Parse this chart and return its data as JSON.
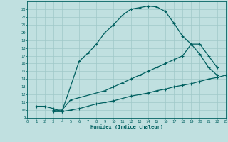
{
  "background_color": "#c0e0e0",
  "grid_color": "#a0c8c8",
  "line_color": "#006060",
  "xlabel": "Humidex (Indice chaleur)",
  "ylim": [
    9,
    24
  ],
  "xlim": [
    0,
    23
  ],
  "yticks": [
    9,
    10,
    11,
    12,
    13,
    14,
    15,
    16,
    17,
    18,
    19,
    20,
    21,
    22,
    23
  ],
  "xticks": [
    0,
    1,
    2,
    3,
    4,
    5,
    6,
    7,
    8,
    9,
    10,
    11,
    12,
    13,
    14,
    15,
    16,
    17,
    18,
    19,
    20,
    21,
    22,
    23
  ],
  "curve1_x": [
    1,
    2,
    3,
    4,
    5,
    6,
    7,
    8,
    9,
    10,
    11,
    12,
    13,
    14,
    15,
    16,
    17,
    18,
    19,
    20,
    21,
    22
  ],
  "curve1_y": [
    10.5,
    10.5,
    10.2,
    9.8,
    13.0,
    16.3,
    17.3,
    18.5,
    20.0,
    21.0,
    22.2,
    23.0,
    23.2,
    23.4,
    23.3,
    22.7,
    21.2,
    19.5,
    18.5,
    17.2,
    15.5,
    14.5
  ],
  "curve2_x": [
    3,
    4,
    5,
    9,
    10,
    11,
    12,
    13,
    14,
    15,
    16,
    17,
    18,
    19,
    20,
    21,
    22
  ],
  "curve2_y": [
    10.0,
    10.0,
    11.3,
    12.5,
    13.0,
    13.5,
    14.0,
    14.5,
    15.0,
    15.5,
    16.0,
    16.5,
    17.0,
    18.5,
    18.5,
    17.0,
    15.5
  ],
  "curve3_x": [
    3,
    4,
    5,
    6,
    7,
    8,
    9,
    10,
    11,
    12,
    13,
    14,
    15,
    16,
    17,
    18,
    19,
    20,
    21,
    22,
    23
  ],
  "curve3_y": [
    9.8,
    9.8,
    10.0,
    10.2,
    10.5,
    10.8,
    11.0,
    11.2,
    11.5,
    11.8,
    12.0,
    12.2,
    12.5,
    12.7,
    13.0,
    13.2,
    13.4,
    13.7,
    14.0,
    14.2,
    14.5
  ]
}
